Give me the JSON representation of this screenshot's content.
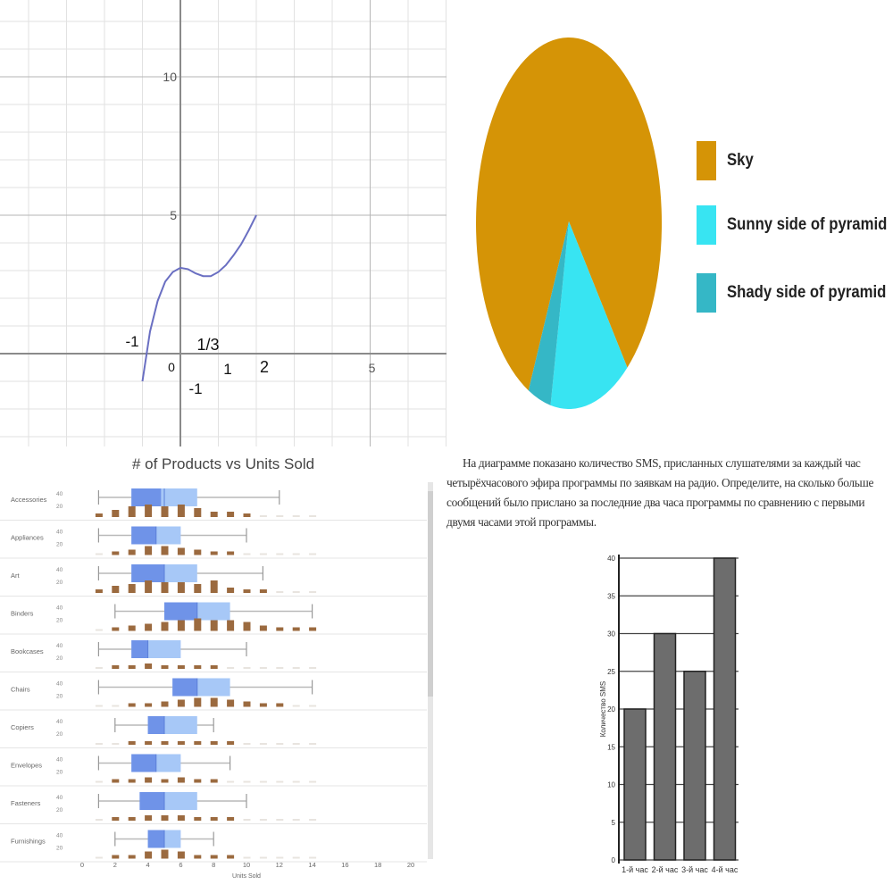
{
  "chart_data": [
    {
      "type": "line",
      "title": "",
      "xlabel": "",
      "ylabel": "",
      "xlim": [
        -2,
        9
      ],
      "ylim": [
        -3.5,
        12.5
      ],
      "grid": true,
      "x_ticks": [
        "5"
      ],
      "y_ticks": [
        "5",
        "10"
      ],
      "annotations": [
        "-1",
        "1/3",
        "0",
        "1",
        "2",
        "-1"
      ],
      "series": [
        {
          "x": [
            -1,
            -0.8,
            -0.6,
            -0.4,
            -0.2,
            0,
            0.2,
            0.4,
            0.6,
            0.8,
            1,
            1.2,
            1.4,
            1.6,
            1.8,
            2
          ],
          "y": [
            -1,
            0.8,
            1.9,
            2.6,
            2.95,
            3.1,
            3.05,
            2.9,
            2.8,
            2.8,
            2.95,
            3.2,
            3.55,
            3.95,
            4.45,
            5
          ],
          "color": "#6a6fc2"
        }
      ]
    },
    {
      "type": "pie",
      "legend_position": "right",
      "slices": [
        {
          "label": "Sky",
          "value": 82,
          "color": "#d59406"
        },
        {
          "label": "Sunny side of pyramid",
          "value": 14,
          "color": "#38e4f2"
        },
        {
          "label": "Shady side of pyramid",
          "value": 4,
          "color": "#35b7c6"
        }
      ]
    },
    {
      "type": "box",
      "title": "# of Products vs Units Sold",
      "xlabel": "Units Sold",
      "xlim": [
        0,
        20
      ],
      "x_ticks": [
        0,
        2,
        4,
        6,
        8,
        10,
        12,
        14,
        16,
        18,
        20
      ],
      "histogram_axis_ticks": [
        "40",
        "20"
      ],
      "colors": {
        "whisker": "#b9b9b9",
        "box_outer": "#a7c8f7",
        "box_inner": "#6f93e8",
        "histogram": "#9b6a3f"
      },
      "categories": [
        "Accessories",
        "Appliances",
        "Art",
        "Binders",
        "Bookcases",
        "Chairs",
        "Copiers",
        "Envelopes",
        "Fasteners",
        "Furnishings"
      ],
      "boxes": [
        {
          "min": 1,
          "q1": 3,
          "median": 5,
          "q3": 7,
          "max": 12,
          "inner": [
            3,
            4.8
          ]
        },
        {
          "min": 1,
          "q1": 3,
          "median": 4.5,
          "q3": 6,
          "max": 10,
          "inner": [
            3,
            4.5
          ]
        },
        {
          "min": 1,
          "q1": 3,
          "median": 5,
          "q3": 7,
          "max": 11,
          "inner": [
            3,
            5
          ]
        },
        {
          "min": 2,
          "q1": 5,
          "median": 7,
          "q3": 9,
          "max": 14,
          "inner": [
            5,
            7
          ]
        },
        {
          "min": 1,
          "q1": 3,
          "median": 4,
          "q3": 6,
          "max": 10,
          "inner": [
            3,
            4
          ]
        },
        {
          "min": 1,
          "q1": 5.5,
          "median": 7,
          "q3": 9,
          "max": 14,
          "inner": [
            5.5,
            7
          ]
        },
        {
          "min": 2,
          "q1": 4,
          "median": 5,
          "q3": 7,
          "max": 8,
          "inner": [
            4,
            5
          ]
        },
        {
          "min": 1,
          "q1": 3,
          "median": 4.5,
          "q3": 6,
          "max": 9,
          "inner": [
            3,
            4.5
          ]
        },
        {
          "min": 1,
          "q1": 3.5,
          "median": 5,
          "q3": 7,
          "max": 10,
          "inner": [
            3.5,
            5
          ]
        },
        {
          "min": 2,
          "q1": 4,
          "median": 5,
          "q3": 6,
          "max": 8,
          "inner": [
            4,
            5
          ]
        }
      ],
      "histograms": [
        [
          1,
          3,
          5,
          6,
          5,
          6,
          4,
          2,
          2,
          1,
          0,
          0,
          0,
          0
        ],
        [
          0,
          1,
          2,
          4,
          4,
          3,
          2,
          1,
          1,
          0,
          0,
          0,
          0,
          0
        ],
        [
          1,
          3,
          4,
          6,
          5,
          5,
          4,
          6,
          2,
          1,
          1,
          0,
          0,
          0
        ],
        [
          0,
          1,
          2,
          3,
          4,
          5,
          6,
          5,
          5,
          4,
          2,
          1,
          1,
          1
        ],
        [
          0,
          1,
          1,
          2,
          1,
          1,
          1,
          1,
          0,
          0,
          0,
          0,
          0,
          0
        ],
        [
          0,
          0,
          1,
          1,
          2,
          3,
          4,
          4,
          3,
          2,
          1,
          1,
          0,
          0
        ],
        [
          0,
          0,
          1,
          1,
          1,
          1,
          1,
          1,
          1,
          0,
          0,
          0,
          0,
          0
        ],
        [
          0,
          1,
          1,
          2,
          1,
          2,
          1,
          1,
          0,
          0,
          0,
          0,
          0,
          0
        ],
        [
          0,
          1,
          1,
          2,
          2,
          2,
          1,
          1,
          1,
          0,
          0,
          0,
          0,
          0
        ],
        [
          0,
          1,
          1,
          3,
          4,
          3,
          1,
          1,
          1,
          0,
          0,
          0,
          0,
          0
        ]
      ]
    },
    {
      "type": "bar",
      "categories": [
        "1-й час",
        "2-й час",
        "3-й час",
        "4-й час"
      ],
      "values": [
        20,
        30,
        25,
        40
      ],
      "ylim": [
        0,
        40
      ],
      "y_ticks": [
        0,
        5,
        10,
        15,
        20,
        25,
        30,
        35,
        40
      ],
      "ylabel": "Количество SMS",
      "color": "#6d6d6d"
    }
  ],
  "problem_text": "На диаграмме показано количество SMS, присланных слушателями за каждый час четырёхчасового эфира программы по заявкам на радио. Определите, на сколько больше сообщений было прислано за последние два часа программы по сравнению с первыми двумя часами этой программы."
}
